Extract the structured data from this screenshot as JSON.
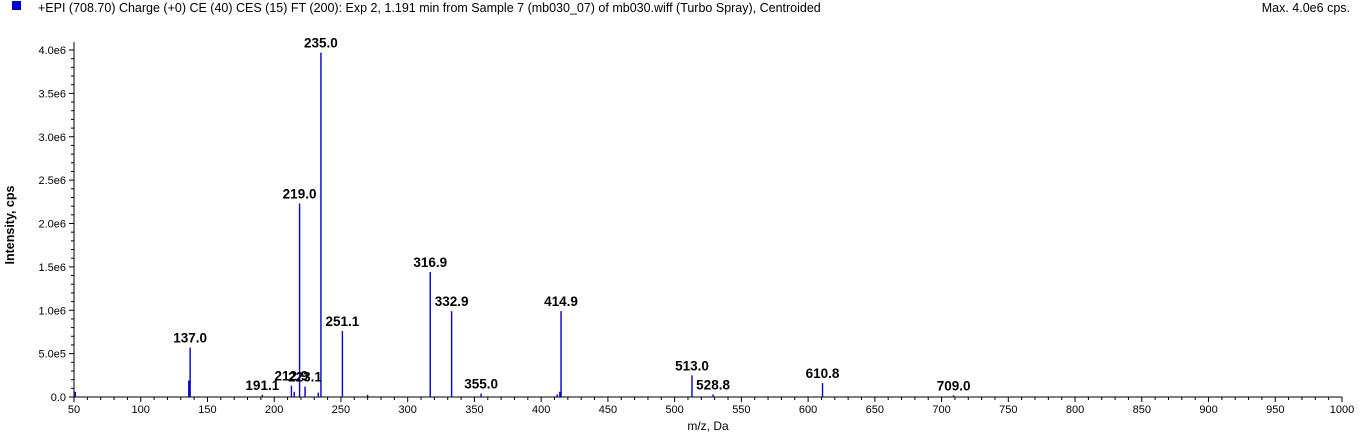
{
  "header": {
    "title": "+EPI (708.70) Charge (+0) CE (40) CES (15) FT (200): Exp 2, 1.191 min from Sample 7 (mb030_07) of mb030.wiff (Turbo Spray), Centroided",
    "max_label": "Max. 4.0e6 cps.",
    "legend_color": "#0000cc"
  },
  "chart_data": {
    "type": "bar",
    "xlabel": "m/z, Da",
    "ylabel": "Intensity, cps",
    "xlim": [
      50,
      1000
    ],
    "ylim": [
      0,
      4000000
    ],
    "xticks": [
      "50",
      "100",
      "150",
      "200",
      "250",
      "300",
      "350",
      "400",
      "450",
      "500",
      "550",
      "600",
      "650",
      "700",
      "750",
      "800",
      "850",
      "900",
      "950",
      "1000"
    ],
    "yticks": [
      "0.0",
      "5.0e5",
      "1.0e6",
      "1.5e6",
      "2.0e6",
      "2.5e6",
      "3.0e6",
      "3.5e6",
      "4.0e6"
    ],
    "line_color": "#0000cc",
    "peaks": [
      {
        "mz": 51.0,
        "intensity": 60000
      },
      {
        "mz": 136.0,
        "intensity": 190000
      },
      {
        "mz": 137.0,
        "intensity": 570000,
        "label": "137.0"
      },
      {
        "mz": 191.1,
        "intensity": 25000,
        "label": "191.1"
      },
      {
        "mz": 212.9,
        "intensity": 130000,
        "label": "212.9"
      },
      {
        "mz": 215.0,
        "intensity": 60000
      },
      {
        "mz": 219.0,
        "intensity": 2230000,
        "label": "219.0"
      },
      {
        "mz": 223.1,
        "intensity": 120000,
        "label": "223.1"
      },
      {
        "mz": 233.0,
        "intensity": 50000
      },
      {
        "mz": 235.0,
        "intensity": 3970000,
        "label": "235.0"
      },
      {
        "mz": 251.1,
        "intensity": 760000,
        "label": "251.1"
      },
      {
        "mz": 270.0,
        "intensity": 25000
      },
      {
        "mz": 316.9,
        "intensity": 1440000,
        "label": "316.9"
      },
      {
        "mz": 332.9,
        "intensity": 990000,
        "label": "332.9"
      },
      {
        "mz": 355.0,
        "intensity": 40000,
        "label": "355.0"
      },
      {
        "mz": 412.0,
        "intensity": 30000
      },
      {
        "mz": 414.0,
        "intensity": 60000
      },
      {
        "mz": 414.9,
        "intensity": 990000,
        "label": "414.9"
      },
      {
        "mz": 513.0,
        "intensity": 250000,
        "label": "513.0"
      },
      {
        "mz": 528.8,
        "intensity": 30000,
        "label": "528.8"
      },
      {
        "mz": 610.8,
        "intensity": 160000,
        "label": "610.8"
      },
      {
        "mz": 709.0,
        "intensity": 20000,
        "label": "709.0"
      }
    ]
  }
}
